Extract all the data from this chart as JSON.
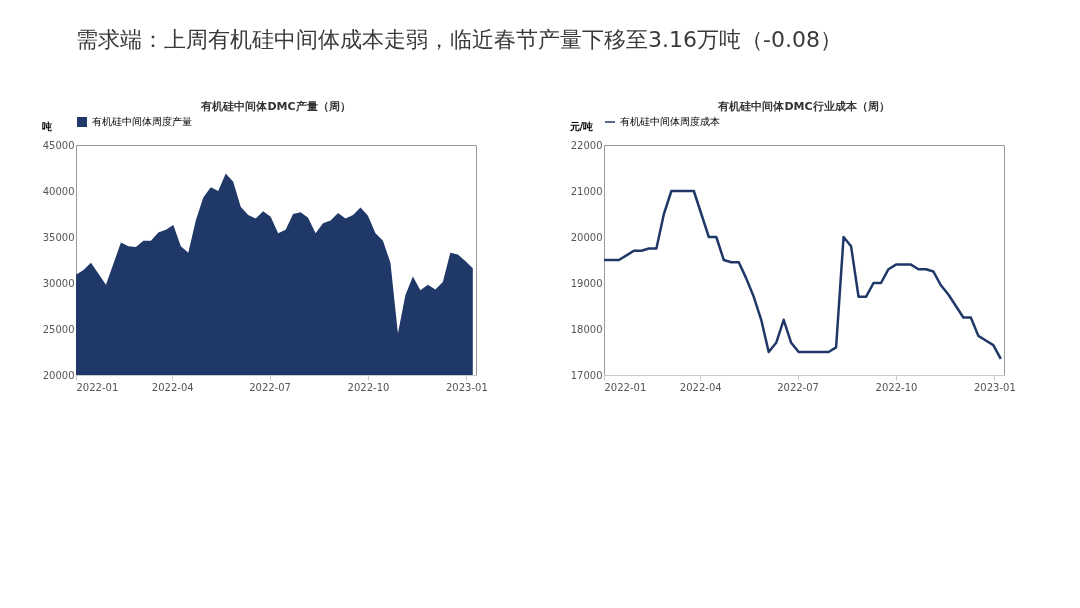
{
  "chart_data": [
    {
      "type": "area",
      "title": "有机硅中间体DMC产量（周）",
      "ylabel": "吨",
      "annotations": [
        "需求端：上周有机硅中间体成本走弱，临近春节产量下移至3.16万吨（-0.08）"
      ],
      "x": [
        "2022-01-01",
        "2022-01-08",
        "2022-01-15",
        "2022-01-22",
        "2022-01-29",
        "2022-02-05",
        "2022-02-12",
        "2022-02-19",
        "2022-02-26",
        "2022-03-05",
        "2022-03-12",
        "2022-03-19",
        "2022-03-26",
        "2022-04-02",
        "2022-04-09",
        "2022-04-16",
        "2022-04-23",
        "2022-04-30",
        "2022-05-07",
        "2022-05-14",
        "2022-05-21",
        "2022-05-28",
        "2022-06-04",
        "2022-06-11",
        "2022-06-18",
        "2022-06-25",
        "2022-07-02",
        "2022-07-09",
        "2022-07-16",
        "2022-07-23",
        "2022-07-30",
        "2022-08-06",
        "2022-08-13",
        "2022-08-20",
        "2022-08-27",
        "2022-09-03",
        "2022-09-10",
        "2022-09-17",
        "2022-09-24",
        "2022-10-01",
        "2022-10-08",
        "2022-10-15",
        "2022-10-22",
        "2022-10-29",
        "2022-11-05",
        "2022-11-12",
        "2022-11-19",
        "2022-11-26",
        "2022-12-03",
        "2022-12-10",
        "2022-12-17",
        "2022-12-24",
        "2022-12-31",
        "2023-01-07"
      ],
      "series": [
        {
          "name": "有机硅中间体周度产量",
          "color": "#203868",
          "values": [
            30900,
            31400,
            32200,
            31000,
            29800,
            32100,
            34400,
            34000,
            33900,
            34600,
            34600,
            35500,
            35800,
            36300,
            34000,
            33300,
            36800,
            39300,
            40400,
            40000,
            41900,
            41000,
            38300,
            37400,
            37000,
            37800,
            37200,
            35400,
            35800,
            37500,
            37700,
            37100,
            35400,
            36500,
            36800,
            37600,
            37000,
            37400,
            38200,
            37300,
            35400,
            34600,
            32200,
            24500,
            28700,
            30700,
            29200,
            29800,
            29300,
            30100,
            33300,
            33100,
            32400,
            31600
          ]
        }
      ],
      "xlim": [
        "2022-01-01",
        "2023-01-10"
      ],
      "xticks": [
        "2022-01",
        "2022-04",
        "2022-07",
        "2022-10",
        "2023-01"
      ],
      "ylim": [
        20000,
        45000
      ],
      "yticks": [
        20000,
        25000,
        30000,
        35000,
        40000,
        45000
      ],
      "grid": false,
      "legend": "top"
    },
    {
      "type": "line",
      "title": "有机硅中间体DMC行业成本（周）",
      "ylabel": "元/吨",
      "x": [
        "2022-01-01",
        "2022-01-08",
        "2022-01-15",
        "2022-01-22",
        "2022-01-29",
        "2022-02-05",
        "2022-02-12",
        "2022-02-19",
        "2022-02-26",
        "2022-03-05",
        "2022-03-12",
        "2022-03-19",
        "2022-03-26",
        "2022-04-02",
        "2022-04-09",
        "2022-04-16",
        "2022-04-23",
        "2022-04-30",
        "2022-05-07",
        "2022-05-14",
        "2022-05-21",
        "2022-05-28",
        "2022-06-04",
        "2022-06-11",
        "2022-06-18",
        "2022-06-25",
        "2022-07-02",
        "2022-07-09",
        "2022-07-16",
        "2022-07-23",
        "2022-07-30",
        "2022-08-06",
        "2022-08-13",
        "2022-08-20",
        "2022-08-27",
        "2022-09-03",
        "2022-09-10",
        "2022-09-17",
        "2022-09-24",
        "2022-10-01",
        "2022-10-08",
        "2022-10-15",
        "2022-10-22",
        "2022-10-29",
        "2022-11-05",
        "2022-11-12",
        "2022-11-19",
        "2022-11-26",
        "2022-12-03",
        "2022-12-10",
        "2022-12-17",
        "2022-12-24",
        "2022-12-31",
        "2023-01-07"
      ],
      "series": [
        {
          "name": "有机硅中间体周度成本",
          "color": "#203868",
          "values": [
            19500,
            19500,
            19500,
            19600,
            19700,
            19700,
            19750,
            19750,
            20500,
            21000,
            21000,
            21000,
            21000,
            20500,
            20000,
            20000,
            19500,
            19450,
            19450,
            19100,
            18700,
            18200,
            17500,
            17700,
            18200,
            17700,
            17500,
            17500,
            17500,
            17500,
            17500,
            17600,
            20000,
            19800,
            18700,
            18700,
            19000,
            19000,
            19300,
            19400,
            19400,
            19400,
            19300,
            19300,
            19250,
            18950,
            18750,
            18500,
            18250,
            18250,
            17850,
            17750,
            17650,
            17350
          ]
        }
      ],
      "xlim": [
        "2022-01-01",
        "2023-01-10"
      ],
      "xticks": [
        "2022-01",
        "2022-04",
        "2022-07",
        "2022-10",
        "2023-01"
      ],
      "ylim": [
        17000,
        22000
      ],
      "yticks": [
        17000,
        18000,
        19000,
        20000,
        21000,
        22000
      ],
      "grid": false,
      "legend": "top",
      "marker": "none",
      "line_style": "solid"
    }
  ]
}
